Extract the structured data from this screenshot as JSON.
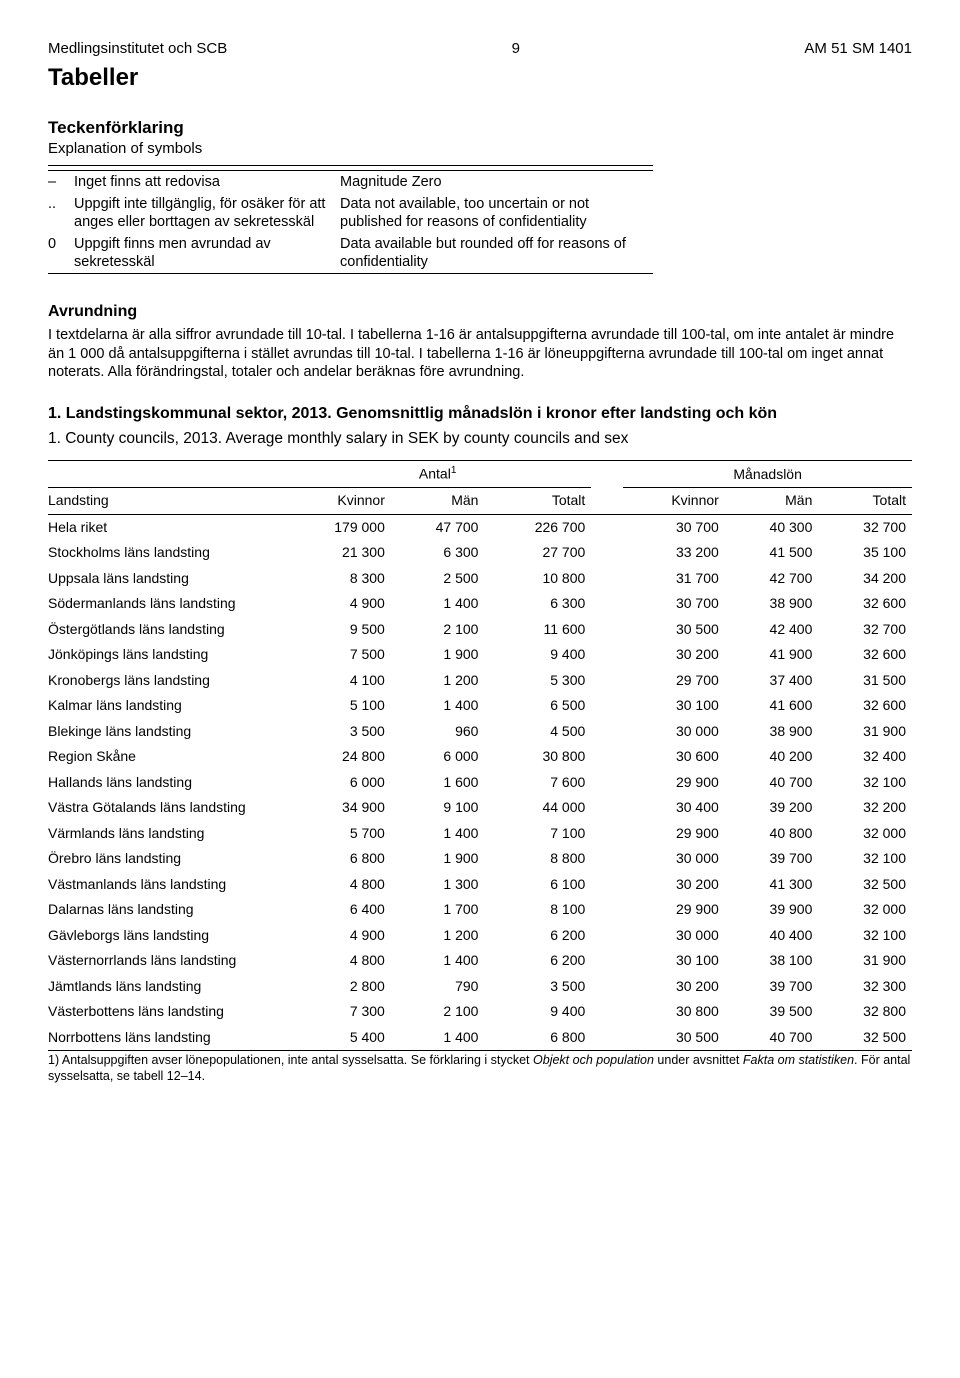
{
  "header": {
    "left": "Medlingsinstitutet och SCB",
    "page": "9",
    "right": "AM 51 SM 1401"
  },
  "h1": "Tabeller",
  "symbol_section": {
    "heading": "Teckenförklaring",
    "sub": "Explanation of symbols",
    "rows": [
      {
        "sym": "–",
        "sv": "Inget finns att redovisa",
        "en": "Magnitude Zero"
      },
      {
        "sym": "..",
        "sv": "Uppgift inte tillgänglig, för osäker för att anges eller borttagen av sekretesskäl",
        "en": "Data not available, too uncertain or not published for reasons of confidentiality"
      },
      {
        "sym": "0",
        "sv": "Uppgift finns men avrundad av sekretesskäl",
        "en": "Data available but rounded off for reasons of confidentiality"
      }
    ]
  },
  "avrundning": {
    "heading": "Avrundning",
    "text": "I textdelarna är alla siffror avrundade till 10-tal. I tabellerna 1-16 är antalsuppgifterna avrundade till 100-tal, om inte antalet är mindre än 1 000 då antalsuppgifterna i stället avrundas till 10-tal. I tabellerna 1-16 är löneuppgifterna avrundade till 100-tal om inget annat noterats. Alla förändringstal, totaler och andelar beräknas före avrundning."
  },
  "table1": {
    "title_sv": "1. Landstingskommunal sektor, 2013. Genomsnittlig månadslön i kronor efter landsting och kön",
    "title_en": "1. County councils, 2013. Average monthly salary in SEK by county councils and sex",
    "group_headers": {
      "antal": "Antal",
      "antal_sup": "1",
      "lon": "Månadslön"
    },
    "col_headers": {
      "landsting": "Landsting",
      "kvinnor": "Kvinnor",
      "man": "Män",
      "totalt": "Totalt"
    },
    "rows": [
      {
        "name": "Hela riket",
        "a_k": "179 000",
        "a_m": "47 700",
        "a_t": "226 700",
        "l_k": "30 700",
        "l_m": "40 300",
        "l_t": "32 700"
      },
      {
        "name": "Stockholms läns landsting",
        "a_k": "21 300",
        "a_m": "6 300",
        "a_t": "27 700",
        "l_k": "33 200",
        "l_m": "41 500",
        "l_t": "35 100"
      },
      {
        "name": "Uppsala läns landsting",
        "a_k": "8 300",
        "a_m": "2 500",
        "a_t": "10 800",
        "l_k": "31 700",
        "l_m": "42 700",
        "l_t": "34 200"
      },
      {
        "name": "Södermanlands läns landsting",
        "a_k": "4 900",
        "a_m": "1 400",
        "a_t": "6 300",
        "l_k": "30 700",
        "l_m": "38 900",
        "l_t": "32 600"
      },
      {
        "name": "Östergötlands läns landsting",
        "a_k": "9 500",
        "a_m": "2 100",
        "a_t": "11 600",
        "l_k": "30 500",
        "l_m": "42 400",
        "l_t": "32 700"
      },
      {
        "name": "Jönköpings läns landsting",
        "a_k": "7 500",
        "a_m": "1 900",
        "a_t": "9 400",
        "l_k": "30 200",
        "l_m": "41 900",
        "l_t": "32 600"
      },
      {
        "name": "Kronobergs läns landsting",
        "a_k": "4 100",
        "a_m": "1 200",
        "a_t": "5 300",
        "l_k": "29 700",
        "l_m": "37 400",
        "l_t": "31 500"
      },
      {
        "name": "Kalmar läns landsting",
        "a_k": "5 100",
        "a_m": "1 400",
        "a_t": "6 500",
        "l_k": "30 100",
        "l_m": "41 600",
        "l_t": "32 600"
      },
      {
        "name": "Blekinge läns landsting",
        "a_k": "3 500",
        "a_m": "960",
        "a_t": "4 500",
        "l_k": "30 000",
        "l_m": "38 900",
        "l_t": "31 900"
      },
      {
        "name": "Region Skåne",
        "a_k": "24 800",
        "a_m": "6 000",
        "a_t": "30 800",
        "l_k": "30 600",
        "l_m": "40 200",
        "l_t": "32 400"
      },
      {
        "name": "Hallands läns landsting",
        "a_k": "6 000",
        "a_m": "1 600",
        "a_t": "7 600",
        "l_k": "29 900",
        "l_m": "40 700",
        "l_t": "32 100"
      },
      {
        "name": "Västra Götalands läns landsting",
        "a_k": "34 900",
        "a_m": "9 100",
        "a_t": "44 000",
        "l_k": "30 400",
        "l_m": "39 200",
        "l_t": "32 200"
      },
      {
        "name": "Värmlands läns landsting",
        "a_k": "5 700",
        "a_m": "1 400",
        "a_t": "7 100",
        "l_k": "29 900",
        "l_m": "40 800",
        "l_t": "32 000"
      },
      {
        "name": "Örebro läns landsting",
        "a_k": "6 800",
        "a_m": "1 900",
        "a_t": "8 800",
        "l_k": "30 000",
        "l_m": "39 700",
        "l_t": "32 100"
      },
      {
        "name": "Västmanlands läns landsting",
        "a_k": "4 800",
        "a_m": "1 300",
        "a_t": "6 100",
        "l_k": "30 200",
        "l_m": "41 300",
        "l_t": "32 500"
      },
      {
        "name": "Dalarnas läns landsting",
        "a_k": "6 400",
        "a_m": "1 700",
        "a_t": "8 100",
        "l_k": "29 900",
        "l_m": "39 900",
        "l_t": "32 000"
      },
      {
        "name": "Gävleborgs läns landsting",
        "a_k": "4 900",
        "a_m": "1 200",
        "a_t": "6 200",
        "l_k": "30 000",
        "l_m": "40 400",
        "l_t": "32 100"
      },
      {
        "name": "Västernorrlands läns landsting",
        "a_k": "4 800",
        "a_m": "1 400",
        "a_t": "6 200",
        "l_k": "30 100",
        "l_m": "38 100",
        "l_t": "31 900"
      },
      {
        "name": "Jämtlands läns landsting",
        "a_k": "2 800",
        "a_m": "790",
        "a_t": "3 500",
        "l_k": "30 200",
        "l_m": "39 700",
        "l_t": "32 300"
      },
      {
        "name": "Västerbottens läns landsting",
        "a_k": "7 300",
        "a_m": "2 100",
        "a_t": "9 400",
        "l_k": "30 800",
        "l_m": "39 500",
        "l_t": "32 800"
      },
      {
        "name": "Norrbottens läns landsting",
        "a_k": "5 400",
        "a_m": "1 400",
        "a_t": "6 800",
        "l_k": "30 500",
        "l_m": "40 700",
        "l_t": "32 500"
      }
    ],
    "footnote_plain": "1) Antalsuppgiften avser lönepopulationen, inte antal sysselsatta. Se förklaring i stycket ",
    "footnote_italic1": "Objekt och population",
    "footnote_mid": " under avsnittet ",
    "footnote_italic2": "Fakta om statistiken",
    "footnote_end": ". För antal sysselsatta, se tabell 12–14."
  }
}
